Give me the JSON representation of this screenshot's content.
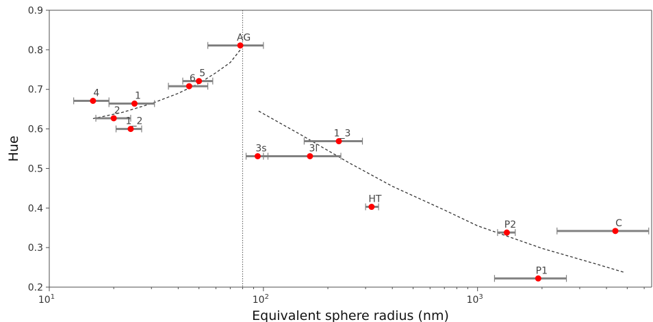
{
  "chart_data": {
    "type": "scatter",
    "title": "",
    "xlabel": "Equivalent sphere radius (nm)",
    "ylabel": "Hue",
    "xscale": "log",
    "xlim": [
      10,
      6500
    ],
    "ylim": [
      0.2,
      0.9
    ],
    "x_tick_labels": [
      {
        "value": 10,
        "base": "10",
        "exp": "1"
      },
      {
        "value": 100,
        "base": "10",
        "exp": "2"
      },
      {
        "value": 1000,
        "base": "10",
        "exp": "3"
      }
    ],
    "y_tick_labels": [
      "0.2",
      "0.3",
      "0.4",
      "0.5",
      "0.6",
      "0.7",
      "0.8",
      "0.9"
    ],
    "y_ticks": [
      0.2,
      0.3,
      0.4,
      0.5,
      0.6,
      0.7,
      0.8,
      0.9
    ],
    "grid": false,
    "vertical_reference_line": {
      "x": 80,
      "style": "dotted"
    },
    "colors": {
      "point": "#ff0000",
      "errorbar": "#808080",
      "fit": "#333333",
      "axis": "#4d4d4d"
    },
    "points": [
      {
        "label": "4",
        "x": 16,
        "y": 0.671,
        "xerr": [
          13,
          19
        ]
      },
      {
        "label": "1",
        "x": 25,
        "y": 0.664,
        "xerr": [
          19,
          31
        ]
      },
      {
        "label": "2",
        "x": 20,
        "y": 0.627,
        "xerr": [
          16.5,
          24
        ]
      },
      {
        "label": "1_2",
        "x": 24,
        "y": 0.6,
        "xerr": [
          20.5,
          27
        ]
      },
      {
        "label": "6",
        "x": 45,
        "y": 0.708,
        "xerr": [
          36,
          55
        ]
      },
      {
        "label": "5",
        "x": 50,
        "y": 0.721,
        "xerr": [
          42,
          58
        ]
      },
      {
        "label": "AG",
        "x": 78,
        "y": 0.811,
        "xerr": [
          55,
          100
        ]
      },
      {
        "label": "3s",
        "x": 94,
        "y": 0.531,
        "xerr": [
          83,
          105
        ]
      },
      {
        "label": "3l",
        "x": 165,
        "y": 0.531,
        "xerr": [
          100,
          230
        ]
      },
      {
        "label": "1_3",
        "x": 225,
        "y": 0.569,
        "xerr": [
          155,
          290
        ]
      },
      {
        "label": "HT",
        "x": 320,
        "y": 0.403,
        "xerr": [
          300,
          345
        ]
      },
      {
        "label": "P2",
        "x": 1370,
        "y": 0.338,
        "xerr": [
          1240,
          1500
        ]
      },
      {
        "label": "C",
        "x": 4400,
        "y": 0.342,
        "xerr": [
          2350,
          6300
        ]
      },
      {
        "label": "P1",
        "x": 1920,
        "y": 0.222,
        "xerr": [
          1200,
          2600
        ]
      }
    ],
    "fit_curves": [
      {
        "style": "dashed",
        "points": [
          [
            16,
            0.626
          ],
          [
            22,
            0.642
          ],
          [
            30,
            0.664
          ],
          [
            40,
            0.69
          ],
          [
            50,
            0.715
          ],
          [
            60,
            0.742
          ],
          [
            70,
            0.768
          ],
          [
            78,
            0.8
          ]
        ]
      },
      {
        "style": "dashed",
        "points": [
          [
            95,
            0.645
          ],
          [
            150,
            0.585
          ],
          [
            250,
            0.515
          ],
          [
            400,
            0.455
          ],
          [
            700,
            0.395
          ],
          [
            1000,
            0.355
          ],
          [
            2000,
            0.298
          ],
          [
            3500,
            0.26
          ],
          [
            4800,
            0.238
          ]
        ]
      }
    ]
  }
}
